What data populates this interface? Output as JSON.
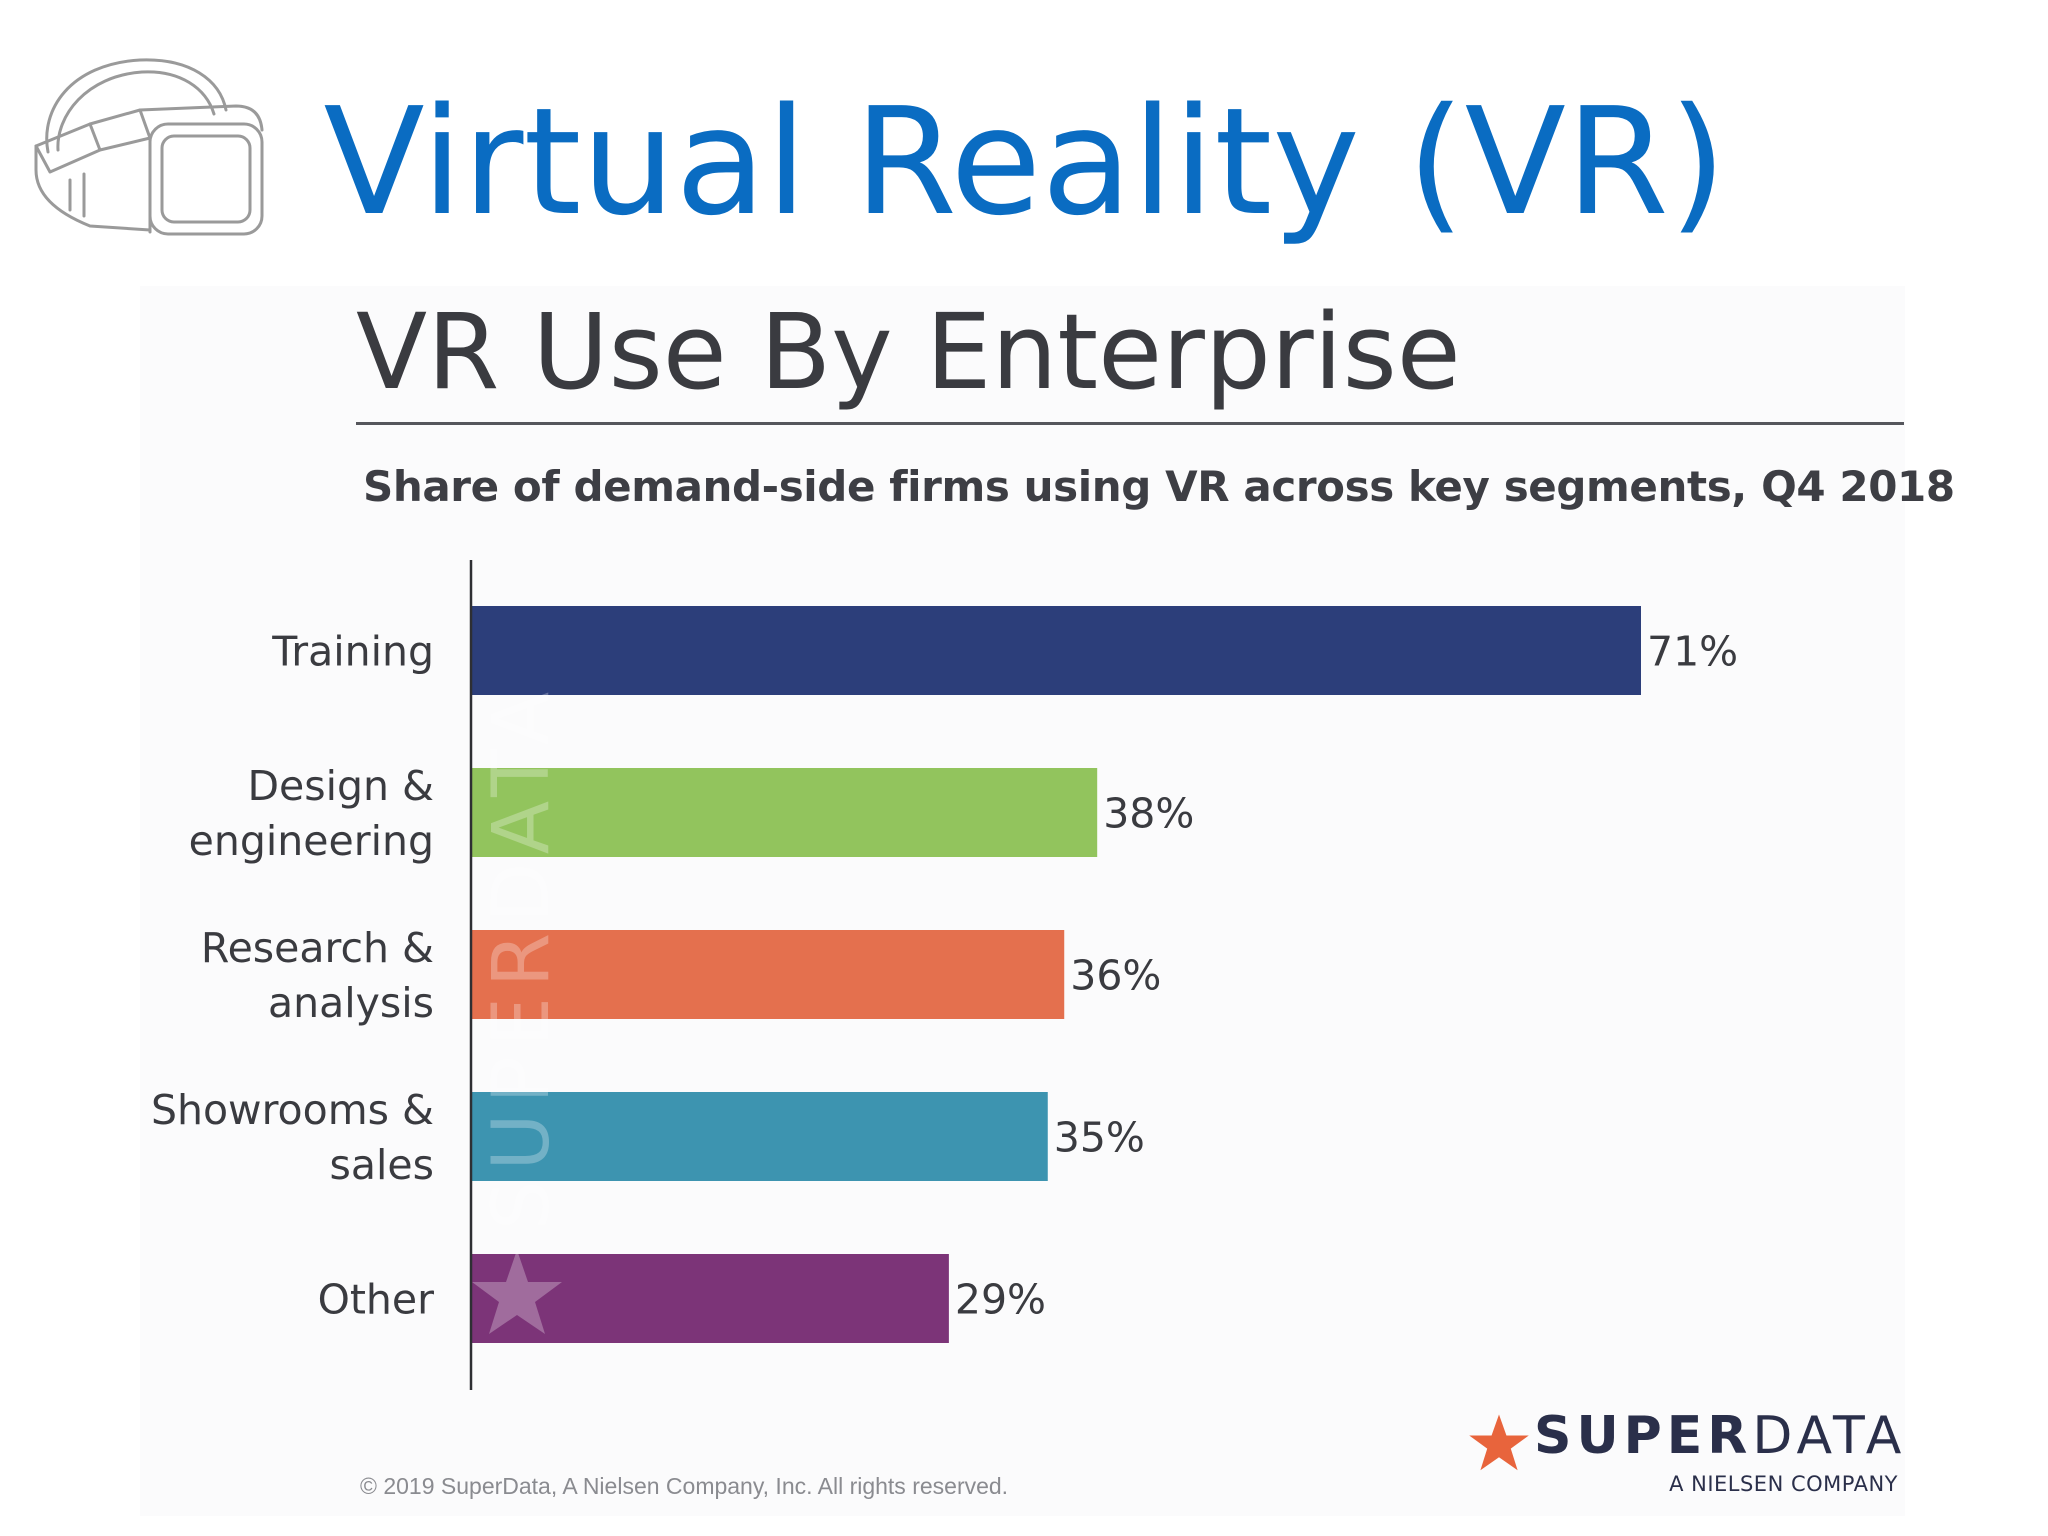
{
  "slide": {
    "title": "Virtual Reality (VR)",
    "icon": "vr-headset-icon"
  },
  "chart_data": {
    "type": "bar",
    "orientation": "horizontal",
    "title": "VR Use By Enterprise",
    "subtitle": "Share of demand-side firms using VR across key segments, Q4 2018",
    "categories": [
      [
        "Training"
      ],
      [
        "Design &",
        "engineering"
      ],
      [
        "Research &",
        "analysis"
      ],
      [
        "Showrooms &",
        "sales"
      ],
      [
        "Other"
      ]
    ],
    "values": [
      71,
      38,
      36,
      35,
      29
    ],
    "value_labels": [
      "71%",
      "38%",
      "36%",
      "35%",
      "29%"
    ],
    "colors": [
      "#2c3e7a",
      "#92c45d",
      "#e4704e",
      "#3d94b0",
      "#7c3478"
    ],
    "xlim": [
      0,
      100
    ],
    "grid": false,
    "legend": "none",
    "watermark": "SUPERDATA"
  },
  "footer": {
    "copyright": "© 2019 SuperData, A Nielsen Company, Inc. All rights reserved.",
    "brand_bold": "SUPER",
    "brand_light": "DATA",
    "brand_sub": "A NIELSEN COMPANY",
    "brand_star_color": "#e8643c"
  }
}
